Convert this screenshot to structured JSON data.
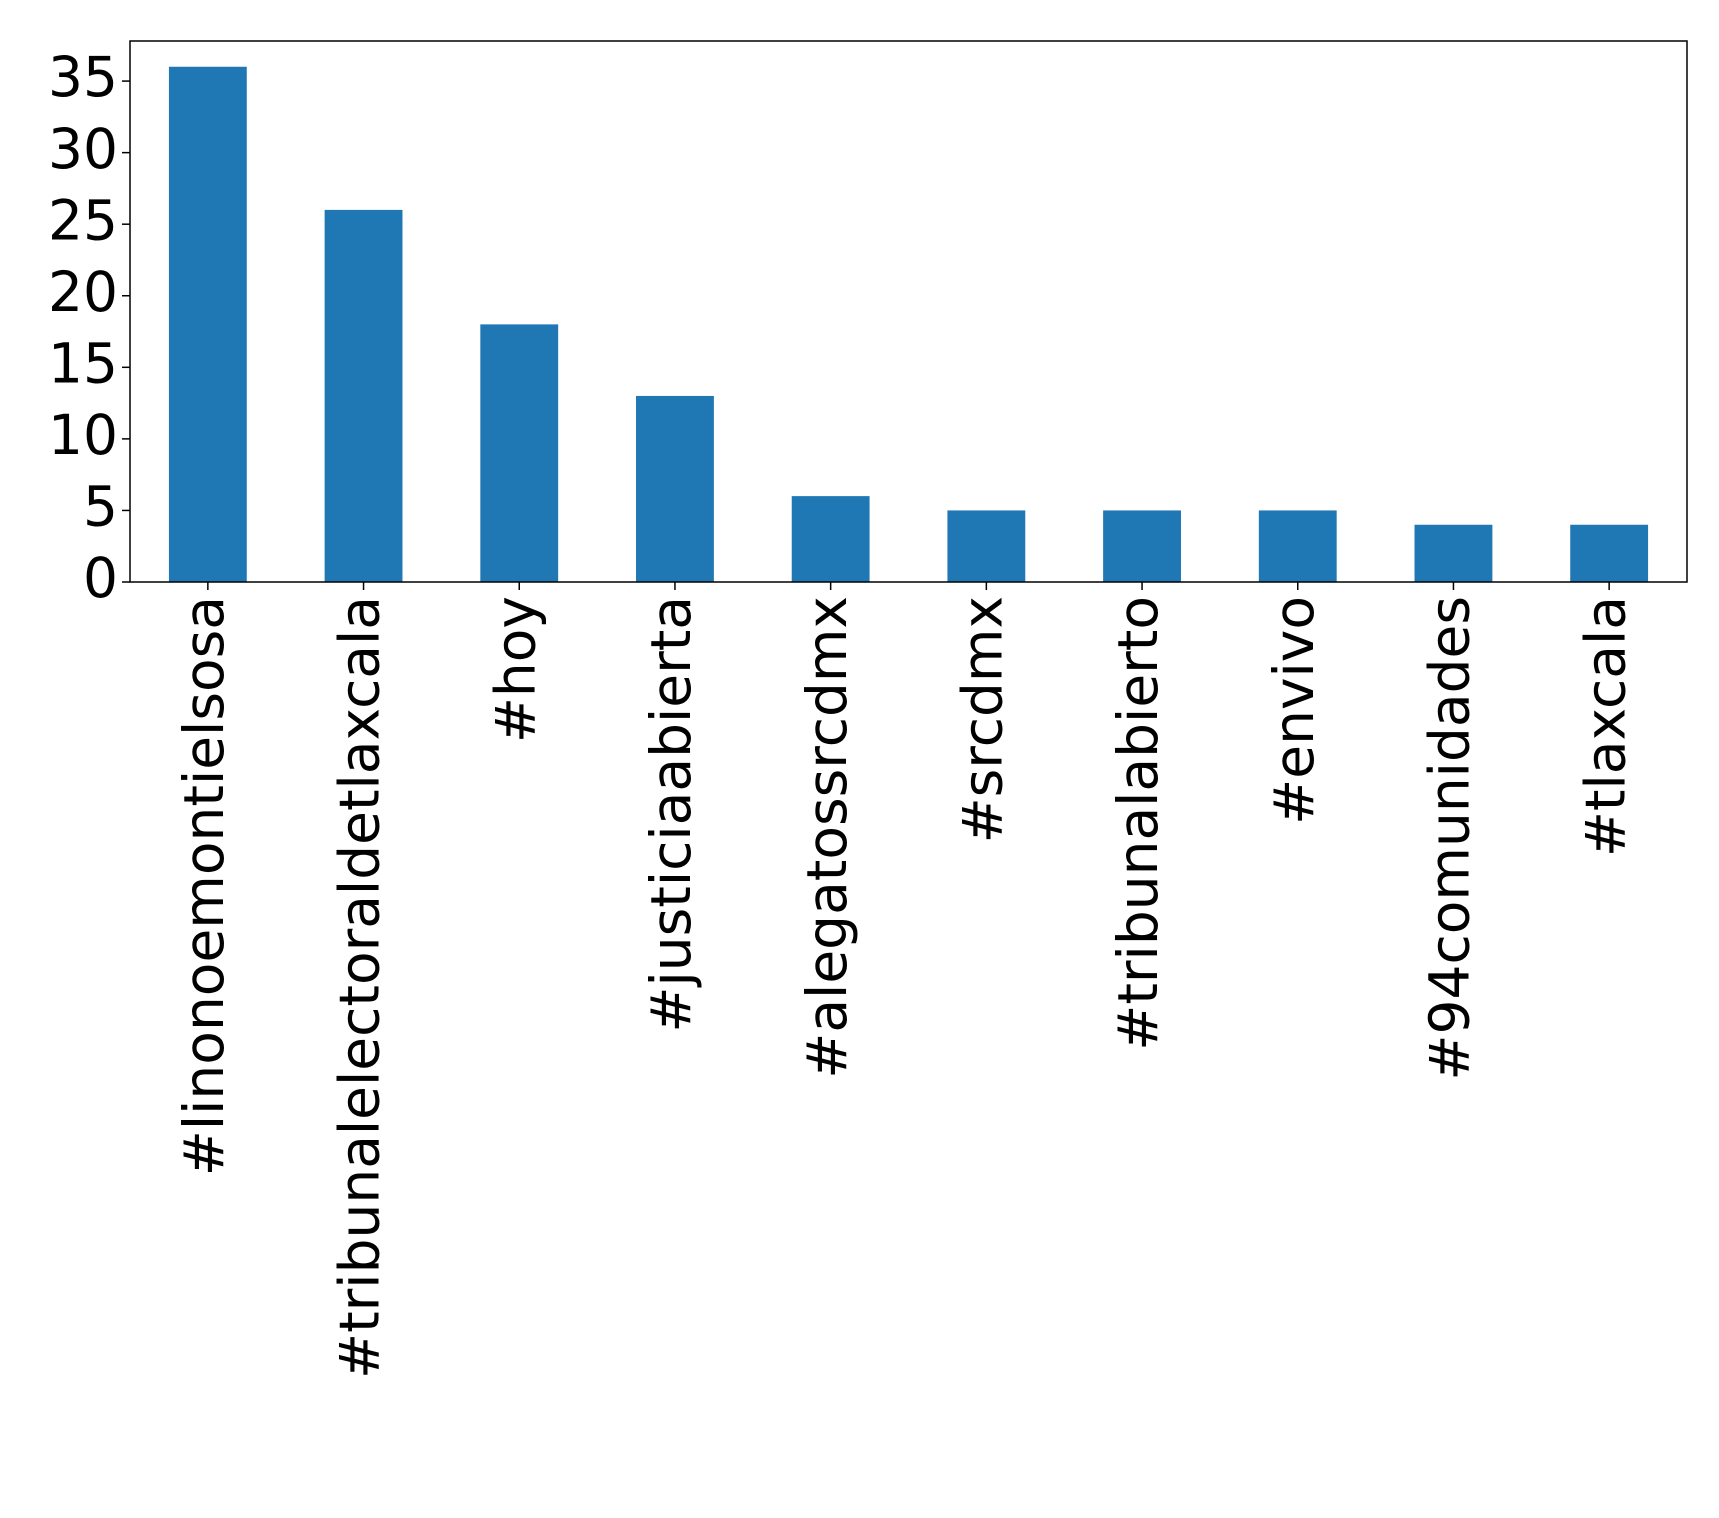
{
  "chart_data": {
    "type": "bar",
    "categories": [
      "#linonoemontielsosa",
      "#tribunalelectoraldetlaxcala",
      "#hoy",
      "#justiciaabierta",
      "#alegatossrcdmx",
      "#srcdmx",
      "#tribunalabierto",
      "#envivo",
      "#94comunidades",
      "#tlaxcala"
    ],
    "values": [
      36,
      26,
      18,
      13,
      6,
      5,
      5,
      5,
      4,
      4
    ],
    "color": "#1f77b4",
    "ylim": [
      0,
      37.8
    ],
    "yticks": [
      0,
      5,
      10,
      15,
      20,
      25,
      30,
      35
    ],
    "grid": false
  }
}
